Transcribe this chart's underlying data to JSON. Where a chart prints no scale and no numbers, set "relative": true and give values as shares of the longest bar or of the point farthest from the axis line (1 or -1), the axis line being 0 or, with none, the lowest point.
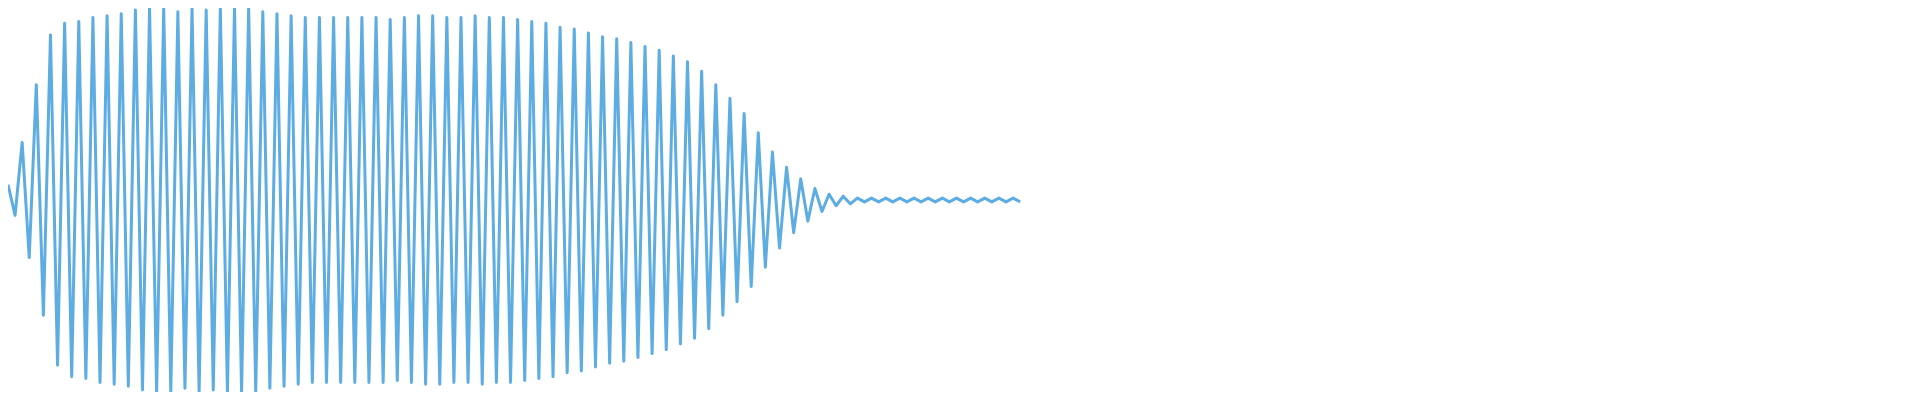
{
  "chart_data": {
    "type": "line",
    "relative": true,
    "grid": false,
    "legend": false,
    "marker": "none",
    "line_style": "solid",
    "categories": [
      null,
      null,
      null,
      null,
      null,
      null,
      null,
      null,
      null,
      null,
      null,
      null,
      null,
      null,
      null,
      null,
      null,
      null,
      null,
      null,
      null,
      null,
      null,
      null,
      null,
      null,
      null,
      null,
      null,
      null,
      null,
      null,
      null,
      null,
      null,
      null,
      null,
      null,
      null,
      null,
      null,
      null,
      null,
      null,
      null,
      null,
      null,
      null,
      null,
      null,
      null,
      null,
      null,
      null,
      null,
      null,
      null,
      null,
      null,
      null,
      null,
      null,
      null,
      null,
      null,
      null,
      null,
      null,
      null,
      null,
      null,
      null,
      null,
      null,
      null,
      null,
      null,
      null,
      null,
      null,
      null,
      null,
      null,
      null,
      null,
      null,
      null,
      null,
      null,
      null,
      null,
      null,
      null,
      null,
      null,
      null,
      null,
      null,
      null,
      null,
      null,
      null,
      null,
      null,
      null,
      null,
      null,
      null,
      null,
      null,
      null,
      null,
      null,
      null,
      null,
      null,
      null,
      null,
      null,
      null,
      null,
      null,
      null,
      null,
      null,
      null,
      null,
      null,
      null,
      null,
      null,
      null,
      null,
      null,
      null,
      null,
      null,
      null,
      null,
      null,
      null,
      null,
      null,
      null,
      null,
      null,
      null,
      null,
      null,
      null,
      null,
      null,
      null,
      null,
      null,
      null,
      null,
      null,
      null,
      null,
      null,
      null,
      null,
      null,
      null,
      null,
      null,
      null,
      null,
      null,
      null,
      null,
      null,
      null,
      null,
      null,
      null,
      null,
      null,
      null,
      null,
      null,
      null,
      null,
      null,
      null,
      null,
      null,
      null,
      null,
      null,
      null,
      null,
      null,
      null,
      null,
      null,
      null,
      null,
      null,
      null,
      null,
      null,
      null,
      null,
      null,
      null,
      null,
      null,
      null,
      null,
      null,
      null,
      null,
      null,
      null,
      null,
      null,
      null,
      null,
      null,
      null,
      null,
      null,
      null,
      null,
      null,
      null,
      null,
      null,
      null,
      null,
      null,
      null,
      null,
      null,
      null,
      null,
      null,
      null,
      null,
      null,
      null,
      null,
      null,
      null,
      null,
      null,
      null,
      null,
      null,
      null,
      null,
      null,
      null,
      null,
      null,
      null,
      null,
      null,
      null,
      null,
      null,
      null,
      null,
      null,
      null,
      null,
      null,
      null
    ],
    "series": [
      {
        "color": "#5dade2",
        "values": [
          0.54,
          0.46,
          0.65,
          0.35,
          0.8,
          0.2,
          0.93,
          0.07,
          0.96,
          0.04,
          0.965,
          0.035,
          0.975,
          0.025,
          0.98,
          0.02,
          0.985,
          0.015,
          0.995,
          0.005,
          1,
          0,
          1,
          0,
          0.99,
          0.01,
          1,
          0,
          0.995,
          0.005,
          1,
          0,
          1,
          0,
          1,
          0,
          0.99,
          0.01,
          0.985,
          0.015,
          0.98,
          0.02,
          0.975,
          0.025,
          0.975,
          0.025,
          0.975,
          0.025,
          0.975,
          0.025,
          0.975,
          0.025,
          0.975,
          0.025,
          0.97,
          0.03,
          0.975,
          0.025,
          0.98,
          0.02,
          0.98,
          0.02,
          0.975,
          0.025,
          0.975,
          0.025,
          0.98,
          0.02,
          0.975,
          0.025,
          0.975,
          0.025,
          0.97,
          0.03,
          0.965,
          0.035,
          0.96,
          0.04,
          0.95,
          0.05,
          0.945,
          0.055,
          0.935,
          0.065,
          0.925,
          0.075,
          0.92,
          0.08,
          0.91,
          0.09,
          0.9,
          0.1,
          0.89,
          0.11,
          0.875,
          0.125,
          0.86,
          0.14,
          0.835,
          0.165,
          0.8,
          0.2,
          0.765,
          0.235,
          0.725,
          0.275,
          0.675,
          0.325,
          0.625,
          0.375,
          0.585,
          0.415,
          0.555,
          0.445,
          0.53,
          0.47,
          0.515,
          0.485,
          0.51,
          0.49,
          0.505,
          0.495,
          0.505,
          0.495,
          0.505,
          0.495,
          0.505,
          0.495,
          0.505,
          0.495,
          0.505,
          0.495,
          0.505,
          0.495,
          0.505,
          0.495,
          0.505,
          0.495,
          0.505,
          0.495,
          0.505,
          0.495,
          0.505,
          0.495,
          null,
          null,
          null,
          null,
          null,
          null,
          null,
          null,
          null,
          null,
          null,
          null,
          null,
          null,
          null,
          null,
          null,
          null,
          null,
          null,
          null,
          null,
          null,
          null,
          null,
          null,
          null,
          null,
          null,
          null,
          null,
          null,
          null,
          null,
          null,
          null,
          null,
          null,
          null,
          null,
          null,
          null,
          null,
          null,
          null,
          null,
          null,
          null,
          null,
          null,
          null,
          null,
          null,
          null,
          null,
          null,
          null,
          null,
          null,
          null,
          null,
          null,
          null,
          null,
          null,
          null,
          null,
          null,
          null,
          null,
          null,
          null,
          null,
          null,
          null,
          null,
          null,
          null,
          null,
          null,
          null,
          null,
          null,
          null,
          null,
          null,
          null,
          null,
          null,
          null,
          null,
          null,
          null,
          null,
          null,
          null,
          null,
          null,
          null,
          null,
          null,
          null,
          null,
          null,
          null,
          null,
          null,
          null,
          null,
          null,
          null,
          null,
          null,
          null,
          null,
          null,
          null,
          null,
          null,
          null,
          null,
          null,
          null,
          null,
          null,
          null
        ]
      }
    ]
  }
}
